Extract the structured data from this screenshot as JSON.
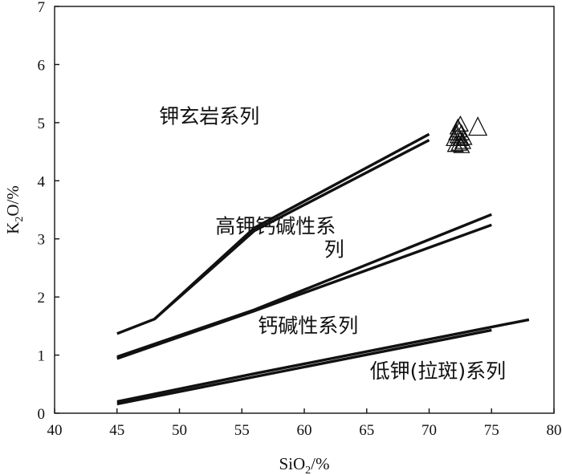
{
  "chart_data": {
    "type": "line",
    "xlabel": {
      "base": "SiO",
      "sub": "2",
      "suffix": "/%"
    },
    "ylabel": {
      "base": "K",
      "sub": "2",
      "suffix": "O/%"
    },
    "xlim": [
      40,
      80
    ],
    "ylim": [
      0,
      7
    ],
    "xticks": [
      40,
      45,
      50,
      55,
      60,
      65,
      70,
      75,
      80
    ],
    "yticks": [
      0,
      1,
      2,
      3,
      4,
      5,
      6,
      7
    ],
    "grid": false,
    "legend": "none",
    "series": [
      {
        "x": [
          45,
          48,
          56,
          70
        ],
        "y": [
          1.37,
          1.62,
          3.19,
          4.8
        ]
      },
      {
        "x": [
          48,
          56,
          70
        ],
        "y": [
          1.62,
          3.14,
          4.7
        ]
      },
      {
        "x": [
          45,
          56,
          75
        ],
        "y": [
          0.97,
          1.78,
          3.42
        ]
      },
      {
        "x": [
          45,
          56,
          75
        ],
        "y": [
          0.94,
          1.76,
          3.24
        ]
      },
      {
        "x": [
          45,
          56,
          78
        ],
        "y": [
          0.2,
          0.68,
          1.61
        ]
      },
      {
        "x": [
          45,
          75
        ],
        "y": [
          0.16,
          1.43
        ]
      }
    ],
    "samples": {
      "marker": "triangle",
      "points": [
        [
          72.0,
          4.7
        ],
        [
          72.2,
          4.8
        ],
        [
          72.3,
          4.75
        ],
        [
          72.4,
          4.85
        ],
        [
          72.5,
          4.7
        ],
        [
          72.6,
          4.8
        ],
        [
          72.4,
          4.62
        ],
        [
          72.7,
          4.65
        ],
        [
          72.3,
          4.9
        ],
        [
          72.5,
          4.95
        ],
        [
          72.8,
          4.72
        ],
        [
          72.1,
          4.6
        ],
        [
          72.6,
          4.58
        ],
        [
          73.9,
          4.9
        ]
      ]
    },
    "annotations": [
      {
        "text": "钾玄岩系列",
        "x": 52.4,
        "y": 4.99
      },
      {
        "text": "高钾钙碱性系",
        "x": 57.7,
        "y": 3.1
      },
      {
        "text": "列",
        "x": 62.4,
        "y": 2.7
      },
      {
        "text": "钙碱性系列",
        "x": 60.3,
        "y": 1.39
      },
      {
        "text": "低钾(拉斑)系列",
        "x": 70.7,
        "y": 0.61
      }
    ]
  }
}
